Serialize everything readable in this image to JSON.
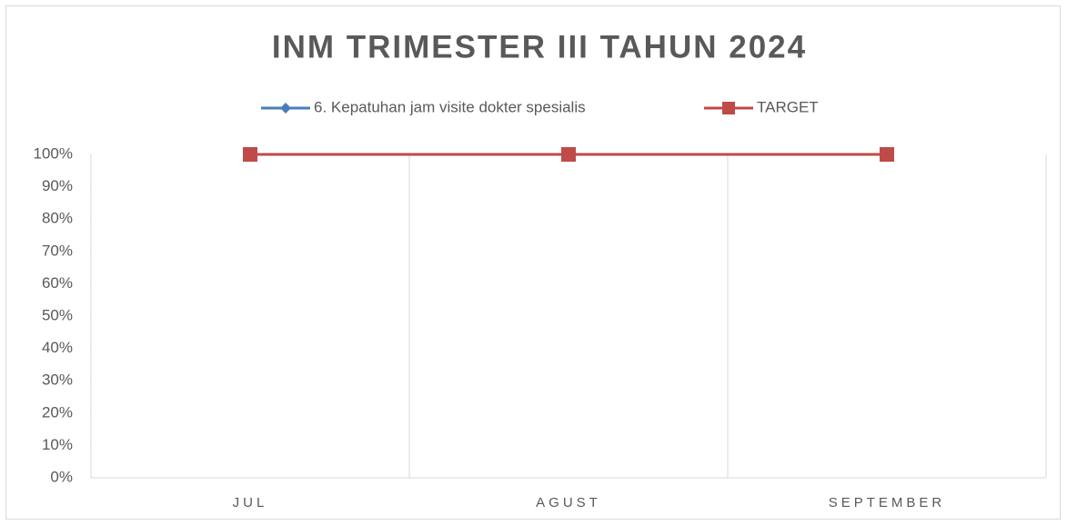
{
  "chart_data": {
    "type": "line",
    "title": "INM TRIMESTER III TAHUN 2024",
    "categories": [
      "JUL",
      "AGUST",
      "SEPTEMBER"
    ],
    "series": [
      {
        "name": "6. Kepatuhan jam visite dokter spesialis",
        "color": "#4a7ebb",
        "marker": "diamond",
        "values": [
          100,
          100,
          100
        ]
      },
      {
        "name": "TARGET",
        "color": "#be4b48",
        "marker": "square",
        "values": [
          100,
          100,
          100
        ]
      }
    ],
    "ylim": [
      0,
      100
    ],
    "yticks": [
      {
        "value": 0,
        "label": "0%"
      },
      {
        "value": 10,
        "label": "10%"
      },
      {
        "value": 20,
        "label": "20%"
      },
      {
        "value": 30,
        "label": "30%"
      },
      {
        "value": 40,
        "label": "40%"
      },
      {
        "value": 50,
        "label": "50%"
      },
      {
        "value": 60,
        "label": "60%"
      },
      {
        "value": 70,
        "label": "70%"
      },
      {
        "value": 80,
        "label": "80%"
      },
      {
        "value": 90,
        "label": "90%"
      },
      {
        "value": 100,
        "label": "100%"
      }
    ],
    "legend": "top"
  }
}
